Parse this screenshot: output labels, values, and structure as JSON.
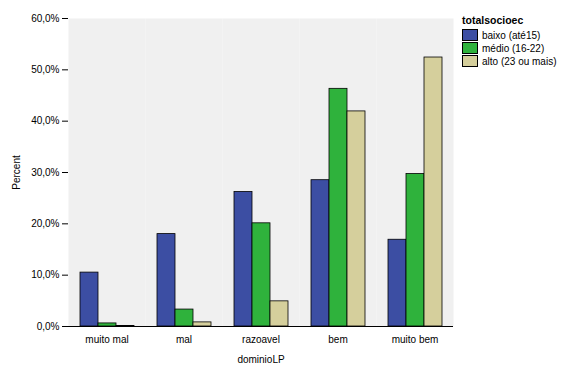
{
  "chart_data": {
    "type": "bar",
    "x_label": "dominioLP",
    "y_label": "Percent",
    "legend_title": "totalsocioec",
    "legend": "right",
    "categories": [
      "muito mal",
      "mal",
      "razoavel",
      "bem",
      "muito bem"
    ],
    "series": [
      {
        "name": "baixo (até15)",
        "color": "#3c4ea3",
        "values": [
          10.5,
          18.0,
          26.2,
          28.5,
          16.9
        ]
      },
      {
        "name": "médio (16-22)",
        "color": "#2fb23c",
        "values": [
          0.6,
          3.3,
          20.1,
          46.3,
          29.7
        ]
      },
      {
        "name": "alto (23 ou mais)",
        "color": "#d5cf9c",
        "values": [
          0.1,
          0.8,
          4.9,
          41.9,
          52.4
        ]
      }
    ],
    "ylim": [
      0,
      60
    ],
    "yticks": [
      {
        "value": 0,
        "label": "0,0%"
      },
      {
        "value": 10,
        "label": "10,0%"
      },
      {
        "value": 20,
        "label": "20,0%"
      },
      {
        "value": 30,
        "label": "30,0%"
      },
      {
        "value": 40,
        "label": "40,0%"
      },
      {
        "value": 50,
        "label": "50,0%"
      },
      {
        "value": 60,
        "label": "60,0%"
      }
    ],
    "grid": false
  }
}
